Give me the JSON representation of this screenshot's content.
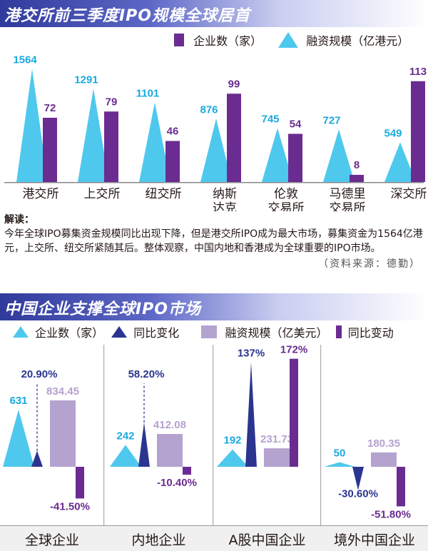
{
  "section1": {
    "title": "港交所前三季度IPO规模全球居首",
    "legend_count": "企业数（家）",
    "legend_funds": "融资规模（亿港元）"
  },
  "section2": {
    "title": "中国企业支撑全球IPO市场",
    "legend_count": "企业数（家）",
    "legend_count_change": "同比变化",
    "legend_funds": "融资规模（亿美元）",
    "legend_funds_change": "同比变动"
  },
  "note": {
    "head": "解读：",
    "text": "今年全球IPO募集资金规模同比出现下降，但是港交所IPO成为最大市场，募集资金为1564亿港元，上交所、纽交所紧随其后。整体观察，中国内地和香港成为全球重要的IPO市场。",
    "source": "（资料来源：德勤）"
  },
  "colors": {
    "cyan": "#4fc8ee",
    "purple": "#6a2c91",
    "light_purple": "#b4a2cf",
    "navy": "#2b3590",
    "text_cyan": "#1aa9df"
  },
  "chart_data": [
    {
      "type": "bar",
      "title": "港交所前三季度IPO规模全球居首",
      "categories": [
        "港交所",
        "上交所",
        "纽交所",
        "纳斯\n达克",
        "伦敦\n交易所",
        "马德里\n交易所",
        "深交所"
      ],
      "series": [
        {
          "name": "融资规模（亿港元）",
          "shape": "triangle",
          "values": [
            1564,
            1291,
            1101,
            876,
            745,
            727,
            549
          ]
        },
        {
          "name": "企业数（家）",
          "shape": "bar",
          "values": [
            72,
            79,
            46,
            99,
            54,
            8,
            113
          ]
        }
      ]
    },
    {
      "type": "bar",
      "title": "中国企业支撑全球IPO市场",
      "categories": [
        "全球企业",
        "内地企业",
        "A股中国企业",
        "境外中国企业"
      ],
      "series": [
        {
          "name": "企业数（家）",
          "shape": "triangle",
          "values": [
            631,
            242,
            192,
            50
          ],
          "labels": [
            "631",
            "242",
            "192",
            "50"
          ]
        },
        {
          "name": "同比变化",
          "shape": "triangle",
          "values": [
            20.9,
            58.2,
            137,
            -30.6
          ],
          "labels": [
            "20.90%",
            "58.20%",
            "137%",
            "-30.60%"
          ]
        },
        {
          "name": "融资规模（亿美元）",
          "shape": "bar",
          "values": [
            834.45,
            412.08,
            231.73,
            180.35
          ],
          "labels": [
            "834.45",
            "412.08",
            "231.73",
            "180.35"
          ]
        },
        {
          "name": "同比变动",
          "shape": "bar",
          "values": [
            -41.5,
            -10.4,
            172,
            -51.8
          ],
          "labels": [
            "-41.50%",
            "-10.40%",
            "172%",
            "-51.80%"
          ]
        }
      ]
    }
  ]
}
